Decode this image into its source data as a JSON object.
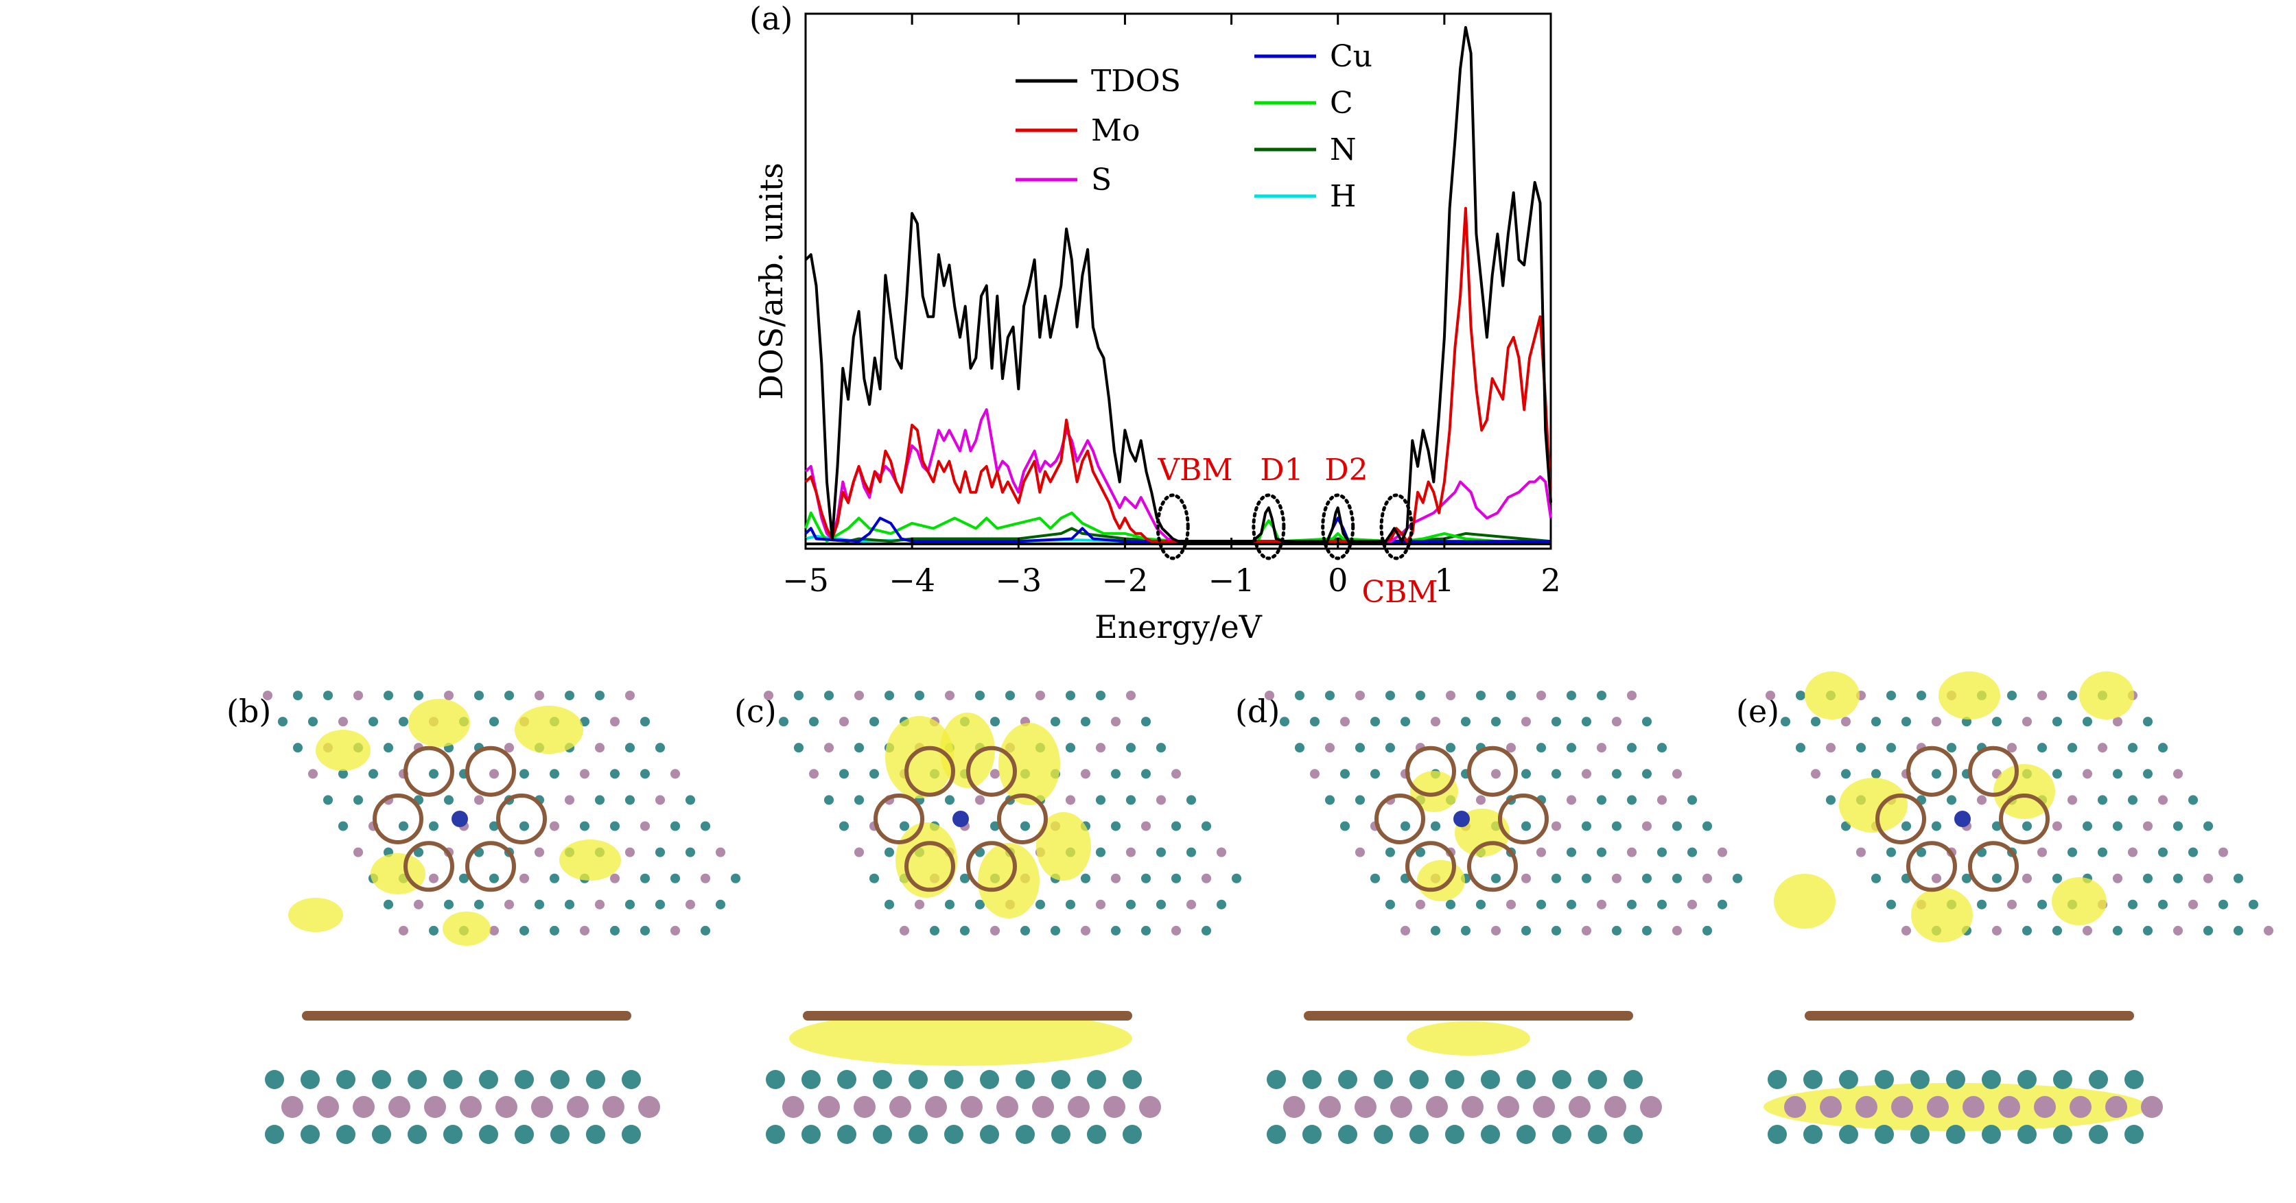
{
  "panels": {
    "a": "(a)",
    "b": "(b)",
    "c": "(c)",
    "d": "(d)",
    "e": "(e)"
  },
  "chart_data": {
    "type": "line",
    "xlabel": "Energy/eV",
    "ylabel": "DOS/arb. units",
    "xlim": [
      -5,
      2
    ],
    "ylim": [
      0,
      10
    ],
    "xticks": [
      -5,
      -4,
      -3,
      -2,
      -1,
      0,
      1,
      2
    ],
    "xtick_labels": [
      "−5",
      "−4",
      "−3",
      "−2",
      "−1",
      "0",
      "1",
      "2"
    ],
    "legend_placement": "top",
    "colors": {
      "TDOS": "#000000",
      "Mo": "#e00000",
      "S": "#e000e0",
      "Cu": "#0000d0",
      "C": "#00e000",
      "N": "#006000",
      "H": "#00e0e0"
    },
    "annotations": [
      {
        "label": "VBM",
        "x": -1.55,
        "color": "#e00000"
      },
      {
        "label": "D1",
        "x": -0.65,
        "color": "#e00000"
      },
      {
        "label": "D2",
        "x": 0.0,
        "color": "#e00000"
      },
      {
        "label": "CBM",
        "x": 0.55,
        "color": "#e00000"
      }
    ],
    "series": [
      {
        "name": "TDOS",
        "x": [
          -5,
          -4.95,
          -4.9,
          -4.85,
          -4.8,
          -4.75,
          -4.7,
          -4.65,
          -4.6,
          -4.55,
          -4.5,
          -4.45,
          -4.4,
          -4.35,
          -4.3,
          -4.25,
          -4.2,
          -4.15,
          -4.1,
          -4.05,
          -4,
          -3.95,
          -3.9,
          -3.85,
          -3.8,
          -3.75,
          -3.7,
          -3.65,
          -3.6,
          -3.55,
          -3.5,
          -3.45,
          -3.4,
          -3.35,
          -3.3,
          -3.25,
          -3.2,
          -3.15,
          -3.1,
          -3.05,
          -3,
          -2.95,
          -2.9,
          -2.85,
          -2.8,
          -2.75,
          -2.7,
          -2.65,
          -2.6,
          -2.55,
          -2.5,
          -2.45,
          -2.4,
          -2.35,
          -2.3,
          -2.25,
          -2.2,
          -2.15,
          -2.1,
          -2.05,
          -2,
          -1.95,
          -1.9,
          -1.85,
          -1.8,
          -1.75,
          -1.7,
          -1.65,
          -1.6,
          -1.55,
          -1.5,
          -1.4,
          -1.2,
          -1,
          -0.8,
          -0.72,
          -0.68,
          -0.65,
          -0.62,
          -0.58,
          -0.5,
          -0.3,
          -0.1,
          -0.05,
          -0.02,
          0,
          0.02,
          0.05,
          0.1,
          0.3,
          0.45,
          0.5,
          0.53,
          0.56,
          0.6,
          0.65,
          0.7,
          0.75,
          0.8,
          0.85,
          0.9,
          0.95,
          1,
          1.05,
          1.1,
          1.15,
          1.2,
          1.25,
          1.3,
          1.35,
          1.4,
          1.45,
          1.5,
          1.55,
          1.6,
          1.65,
          1.7,
          1.75,
          1.8,
          1.85,
          1.9,
          1.95,
          2
        ],
        "y": [
          5.5,
          5.6,
          5.0,
          3.5,
          1.2,
          0.1,
          1.5,
          3.4,
          2.8,
          4.0,
          4.5,
          3.2,
          2.7,
          3.6,
          3.0,
          5.2,
          4.4,
          3.6,
          3.4,
          4.8,
          6.4,
          6.2,
          4.8,
          4.4,
          4.4,
          5.6,
          5.0,
          5.4,
          4.6,
          4.0,
          4.6,
          3.4,
          3.6,
          4.8,
          5.0,
          3.4,
          4.8,
          3.2,
          4.0,
          4.2,
          3.0,
          4.6,
          5.0,
          5.5,
          4.0,
          4.8,
          4.0,
          4.5,
          5.0,
          6.1,
          5.5,
          4.2,
          5.2,
          5.7,
          4.2,
          3.8,
          3.6,
          2.8,
          1.8,
          1.2,
          2.2,
          1.8,
          1.6,
          2.0,
          1.4,
          1.0,
          0.5,
          0.3,
          0.2,
          0.1,
          0.05,
          0.05,
          0.05,
          0.05,
          0.05,
          0.2,
          0.6,
          0.7,
          0.5,
          0.1,
          0.05,
          0.05,
          0.05,
          0.3,
          0.6,
          0.7,
          0.5,
          0.2,
          0.05,
          0.05,
          0.05,
          0.2,
          0.3,
          0.2,
          0.05,
          0.3,
          2.0,
          1.5,
          2.2,
          1.8,
          1.2,
          2.5,
          4.0,
          6.5,
          7.8,
          9.2,
          10.0,
          9.5,
          6.0,
          5.0,
          4.0,
          5.2,
          6.0,
          5.0,
          6.0,
          6.8,
          5.5,
          5.4,
          6.2,
          7.0,
          6.6,
          2.2,
          0.8
        ],
        "color": "#000000"
      },
      {
        "name": "Mo",
        "x": [
          -5,
          -4.95,
          -4.9,
          -4.85,
          -4.8,
          -4.75,
          -4.7,
          -4.65,
          -4.6,
          -4.55,
          -4.5,
          -4.45,
          -4.4,
          -4.35,
          -4.3,
          -4.25,
          -4.2,
          -4.15,
          -4.1,
          -4.05,
          -4,
          -3.95,
          -3.9,
          -3.85,
          -3.8,
          -3.75,
          -3.7,
          -3.65,
          -3.6,
          -3.55,
          -3.5,
          -3.45,
          -3.4,
          -3.35,
          -3.3,
          -3.25,
          -3.2,
          -3.15,
          -3.1,
          -3.05,
          -3,
          -2.95,
          -2.9,
          -2.85,
          -2.8,
          -2.75,
          -2.7,
          -2.65,
          -2.6,
          -2.55,
          -2.5,
          -2.45,
          -2.4,
          -2.35,
          -2.3,
          -2.25,
          -2.2,
          -2.15,
          -2.1,
          -2.05,
          -2,
          -1.95,
          -1.9,
          -1.85,
          -1.8,
          -1.75,
          -1.7,
          -1.6,
          -1.5,
          -1.0,
          -0.5,
          0,
          0.45,
          0.5,
          0.55,
          0.6,
          0.65,
          0.7,
          0.75,
          0.8,
          0.85,
          0.9,
          0.95,
          1,
          1.05,
          1.1,
          1.15,
          1.2,
          1.25,
          1.3,
          1.35,
          1.4,
          1.45,
          1.5,
          1.55,
          1.6,
          1.65,
          1.7,
          1.75,
          1.8,
          1.85,
          1.9,
          1.95,
          2
        ],
        "y": [
          1.2,
          1.3,
          1.0,
          0.6,
          0.3,
          0.1,
          0.4,
          1.0,
          0.8,
          1.2,
          1.5,
          1.2,
          1.0,
          1.4,
          1.2,
          1.8,
          1.6,
          1.2,
          1.0,
          1.6,
          2.3,
          2.2,
          1.6,
          1.4,
          1.2,
          1.6,
          1.4,
          1.6,
          1.2,
          1.0,
          1.4,
          1.0,
          1.0,
          1.4,
          1.5,
          1.1,
          1.4,
          1.0,
          1.2,
          1.0,
          0.8,
          1.2,
          1.4,
          1.6,
          1.0,
          1.4,
          1.2,
          1.4,
          1.6,
          2.4,
          1.8,
          1.2,
          1.6,
          1.8,
          1.4,
          1.2,
          1.0,
          0.8,
          0.5,
          0.3,
          0.5,
          0.3,
          0.2,
          0.2,
          0.1,
          0.05,
          0.05,
          0.05,
          0.05,
          0.05,
          0.05,
          0.05,
          0.05,
          0.1,
          0.3,
          0.2,
          0.05,
          0.2,
          1.0,
          0.8,
          1.2,
          1.0,
          0.6,
          1.2,
          2.2,
          3.8,
          4.8,
          6.5,
          4.2,
          3.0,
          2.2,
          2.4,
          3.2,
          3.0,
          2.8,
          3.8,
          4.0,
          3.6,
          2.6,
          3.6,
          4.0,
          4.4,
          2.8,
          0.8
        ],
        "color": "#e00000"
      },
      {
        "name": "S",
        "x": [
          -5,
          -4.95,
          -4.9,
          -4.85,
          -4.8,
          -4.75,
          -4.7,
          -4.65,
          -4.6,
          -4.55,
          -4.5,
          -4.45,
          -4.4,
          -4.35,
          -4.3,
          -4.25,
          -4.2,
          -4.15,
          -4.1,
          -4.05,
          -4,
          -3.95,
          -3.9,
          -3.85,
          -3.8,
          -3.75,
          -3.7,
          -3.65,
          -3.6,
          -3.55,
          -3.5,
          -3.45,
          -3.4,
          -3.35,
          -3.3,
          -3.25,
          -3.2,
          -3.15,
          -3.1,
          -3.05,
          -3,
          -2.95,
          -2.9,
          -2.85,
          -2.8,
          -2.75,
          -2.7,
          -2.65,
          -2.6,
          -2.55,
          -2.5,
          -2.45,
          -2.4,
          -2.35,
          -2.3,
          -2.25,
          -2.2,
          -2.15,
          -2.1,
          -2.05,
          -2,
          -1.95,
          -1.9,
          -1.85,
          -1.8,
          -1.75,
          -1.7,
          -1.6,
          -1.5,
          -1.0,
          -0.5,
          0,
          0.5,
          0.6,
          0.7,
          0.8,
          0.9,
          1,
          1.05,
          1.1,
          1.15,
          1.2,
          1.25,
          1.3,
          1.4,
          1.5,
          1.6,
          1.7,
          1.8,
          1.85,
          1.9,
          1.95,
          2
        ],
        "y": [
          1.4,
          1.5,
          1.0,
          0.5,
          0.2,
          0.1,
          0.5,
          1.2,
          0.8,
          1.2,
          1.5,
          1.1,
          0.9,
          1.4,
          1.3,
          1.5,
          1.4,
          1.2,
          1.0,
          1.5,
          1.9,
          1.8,
          1.5,
          1.4,
          1.8,
          2.2,
          2.0,
          2.2,
          2.0,
          1.8,
          2.2,
          1.8,
          2.0,
          2.4,
          2.6,
          2.0,
          1.4,
          1.6,
          1.5,
          1.2,
          1.0,
          1.4,
          1.6,
          1.8,
          1.4,
          1.6,
          1.5,
          1.6,
          1.8,
          2.2,
          2.0,
          1.6,
          1.8,
          2.0,
          1.8,
          1.5,
          1.3,
          1.1,
          0.9,
          0.7,
          0.9,
          0.8,
          0.7,
          0.9,
          0.7,
          0.5,
          0.3,
          0.1,
          0.05,
          0.05,
          0.05,
          0.05,
          0.05,
          0.2,
          0.4,
          0.5,
          0.6,
          0.8,
          0.9,
          1.0,
          1.2,
          1.1,
          1.0,
          0.7,
          0.5,
          0.6,
          0.9,
          1.0,
          1.2,
          1.2,
          1.3,
          1.2,
          0.5
        ],
        "color": "#e000e0"
      },
      {
        "name": "Cu",
        "x": [
          -5,
          -4.95,
          -4.9,
          -4.5,
          -4.4,
          -4.3,
          -4.2,
          -4.1,
          -4.0,
          -3.5,
          -3.0,
          -2.5,
          -2.4,
          -2.3,
          -2.0,
          -1.0,
          -0.1,
          -0.05,
          0,
          0.05,
          0.1,
          0.5,
          1.0,
          2
        ],
        "y": [
          0.2,
          0.3,
          0.1,
          0.05,
          0.2,
          0.5,
          0.4,
          0.1,
          0.05,
          0.05,
          0.05,
          0.1,
          0.3,
          0.1,
          0.05,
          0.05,
          0.05,
          0.3,
          0.5,
          0.3,
          0.05,
          0.05,
          0.05,
          0.05
        ],
        "color": "#0000d0"
      },
      {
        "name": "C",
        "x": [
          -5,
          -4.95,
          -4.9,
          -4.85,
          -4.8,
          -4.6,
          -4.5,
          -4.4,
          -4.2,
          -4.0,
          -3.8,
          -3.6,
          -3.5,
          -3.4,
          -3.3,
          -3.2,
          -3.0,
          -2.8,
          -2.7,
          -2.6,
          -2.5,
          -2.4,
          -2.3,
          -2.2,
          -2.0,
          -1.8,
          -1.5,
          -0.75,
          -0.7,
          -0.65,
          -0.6,
          -0.55,
          -0.05,
          0,
          0.05,
          0.5,
          0.6,
          0.8,
          1.0,
          1.2,
          1.5,
          2
        ],
        "y": [
          0.3,
          0.6,
          0.4,
          0.2,
          0.05,
          0.3,
          0.5,
          0.3,
          0.2,
          0.4,
          0.3,
          0.5,
          0.4,
          0.3,
          0.5,
          0.3,
          0.4,
          0.5,
          0.3,
          0.5,
          0.6,
          0.4,
          0.3,
          0.2,
          0.2,
          0.1,
          0.05,
          0.05,
          0.3,
          0.45,
          0.3,
          0.05,
          0.1,
          0.2,
          0.1,
          0.05,
          0.05,
          0.1,
          0.2,
          0.1,
          0.05,
          0.05
        ],
        "color": "#00e000"
      },
      {
        "name": "N",
        "x": [
          -5,
          -4.95,
          -4.9,
          -4.6,
          -4.5,
          -4.2,
          -4.0,
          -3.0,
          -2.6,
          -2.5,
          -2.4,
          -2.0,
          -1.5,
          -1.0,
          -0.5,
          0,
          0.5,
          1.0,
          1.2,
          2
        ],
        "y": [
          0.2,
          0.3,
          0.1,
          0.05,
          0.1,
          0.05,
          0.1,
          0.1,
          0.2,
          0.3,
          0.2,
          0.1,
          0.05,
          0.05,
          0.05,
          0.1,
          0.05,
          0.1,
          0.2,
          0.05
        ],
        "color": "#006000"
      },
      {
        "name": "H",
        "x": [
          -5,
          -4.9,
          -4.5,
          -4.0,
          -3.0,
          -2.5,
          -2.0,
          -1.0,
          0,
          1.0,
          2
        ],
        "y": [
          0.1,
          0.15,
          0.05,
          0.08,
          0.05,
          0.08,
          0.05,
          0.03,
          0.05,
          0.05,
          0.03
        ],
        "color": "#00e0e0"
      }
    ]
  }
}
